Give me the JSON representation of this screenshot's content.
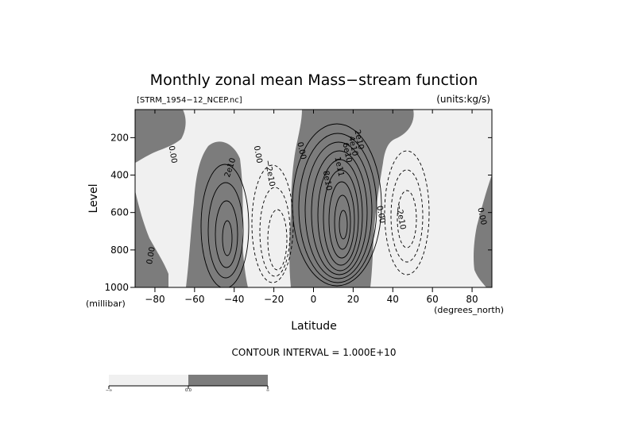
{
  "chart_data": {
    "type": "contour",
    "title": "Monthly zonal mean Mass−stream function",
    "file_label": "[STRM_1954−12_NCEP.nc]",
    "units_label": "(units:kg/s)",
    "xlabel": "Latitude",
    "xunits": "(degrees_north)",
    "ylabel": "Level",
    "yunits": "(millibar)",
    "xlim": [
      -90,
      90
    ],
    "ylim": [
      1000,
      50
    ],
    "y_reversed": true,
    "x_ticks": [
      -80,
      -60,
      -40,
      -20,
      0,
      20,
      40,
      60,
      80
    ],
    "y_ticks": [
      200,
      400,
      600,
      800,
      1000
    ],
    "x_tick_labels": [
      "−80",
      "−60",
      "−40",
      "−20",
      "0",
      "20",
      "40",
      "60",
      "80"
    ],
    "y_tick_labels": [
      "200",
      "400",
      "600",
      "800",
      "1000"
    ],
    "contour_interval_label": "CONTOUR INTERVAL = 1.000E+10",
    "contour_interval": 10000000000.0,
    "shading": {
      "negative_color": "#f0f0f0",
      "positive_color": "#7c7c7c"
    },
    "contour_labels": [
      {
        "text": "0.00",
        "lat": -71,
        "p": 290,
        "rot": 80
      },
      {
        "text": "2e10",
        "lat": -42,
        "p": 360,
        "rot": -72
      },
      {
        "text": "0.00",
        "lat": -28,
        "p": 290,
        "rot": 80
      },
      {
        "text": "−2e10",
        "lat": -22,
        "p": 390,
        "rot": 80
      },
      {
        "text": "0.00",
        "lat": -6,
        "p": 270,
        "rot": 78
      },
      {
        "text": "8e10",
        "lat": 7,
        "p": 430,
        "rot": 80
      },
      {
        "text": "1e11",
        "lat": 13,
        "p": 355,
        "rot": 78
      },
      {
        "text": "2e10",
        "lat": 23,
        "p": 210,
        "rot": 78
      },
      {
        "text": "4e10",
        "lat": 20,
        "p": 245,
        "rot": 78
      },
      {
        "text": "6e10",
        "lat": 17,
        "p": 280,
        "rot": 78
      },
      {
        "text": "0.00",
        "lat": 34,
        "p": 610,
        "rot": 80
      },
      {
        "text": "−2e10",
        "lat": 44,
        "p": 620,
        "rot": 80
      },
      {
        "text": "0.00",
        "lat": 85,
        "p": 620,
        "rot": 78
      },
      {
        "text": "0.00",
        "lat": -82,
        "p": 830,
        "rot": -80
      }
    ],
    "colorbar": {
      "segments": [
        {
          "from": "−∞",
          "to": "0.0",
          "color": "#f0f0f0"
        },
        {
          "from": "0.0",
          "to": "∞",
          "color": "#7c7c7c"
        }
      ],
      "tick_labels": [
        "−∞",
        "0.0",
        "∞"
      ]
    }
  }
}
